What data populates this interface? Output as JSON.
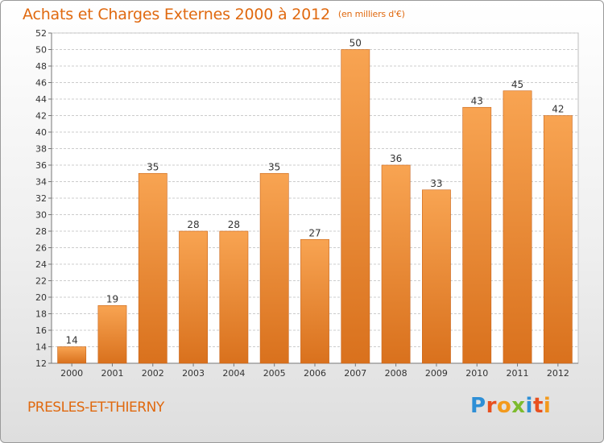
{
  "title": "Achats et Charges Externes 2000 à 2012",
  "unit_note": "(en milliers d'€)",
  "commune": "PRESLES-ET-THIERNY",
  "logo": {
    "text": "Proxiti",
    "letters": [
      "P",
      "r",
      "o",
      "x",
      "i",
      "t",
      "i"
    ],
    "colors": [
      "#2e8fd6",
      "#e8501f",
      "#f39a1d",
      "#7dbb2e",
      "#2e8fd6",
      "#e8501f",
      "#f39a1d"
    ]
  },
  "colors": {
    "bar_light": "#f8a452",
    "bar_dark": "#d9711d",
    "accent": "#e0690f",
    "grid": "#cccccc"
  },
  "chart_data": {
    "type": "bar",
    "title": "Achats et Charges Externes 2000 à 2012",
    "xlabel": "",
    "ylabel": "",
    "categories": [
      "2000",
      "2001",
      "2002",
      "2003",
      "2004",
      "2005",
      "2006",
      "2007",
      "2008",
      "2009",
      "2010",
      "2011",
      "2012"
    ],
    "values": [
      14,
      19,
      35,
      28,
      28,
      35,
      27,
      50,
      36,
      33,
      43,
      45,
      42
    ],
    "ylim": [
      12,
      52
    ],
    "yticks": [
      12,
      14,
      16,
      18,
      20,
      22,
      24,
      26,
      28,
      30,
      32,
      34,
      36,
      38,
      40,
      42,
      44,
      46,
      48,
      50,
      52
    ],
    "grid": true,
    "data_labels": true
  }
}
